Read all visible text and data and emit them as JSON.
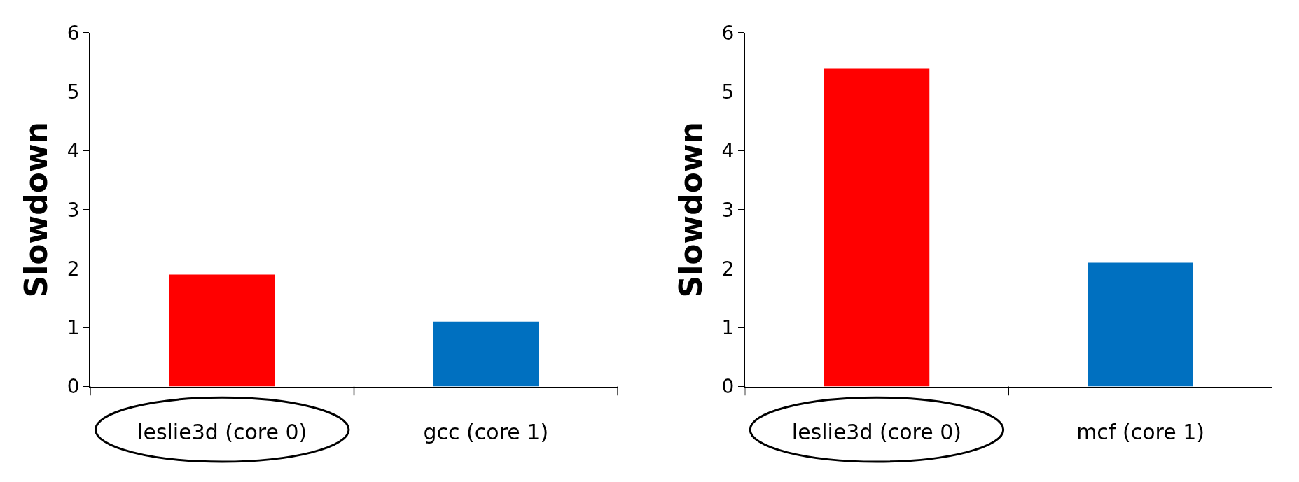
{
  "chart_data": [
    {
      "type": "bar",
      "ylabel": "Slowdown",
      "categories": [
        "leslie3d (core 0)",
        "gcc (core 1)"
      ],
      "values": [
        1.9,
        1.1
      ],
      "colors": [
        "#ff0000",
        "#0070c0"
      ],
      "ylim": [
        0,
        6
      ],
      "yticks": [
        0,
        1,
        2,
        3,
        4,
        5,
        6
      ]
    },
    {
      "type": "bar",
      "ylabel": "Slowdown",
      "categories": [
        "leslie3d (core 0)",
        "mcf (core 1)"
      ],
      "values": [
        5.4,
        2.1
      ],
      "colors": [
        "#ff0000",
        "#0070c0"
      ],
      "ylim": [
        0,
        6
      ],
      "yticks": [
        0,
        1,
        2,
        3,
        4,
        5,
        6
      ]
    }
  ]
}
